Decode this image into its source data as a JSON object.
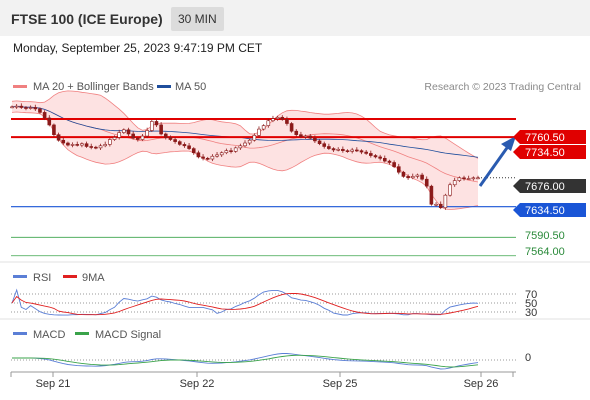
{
  "header": {
    "title": "FTSE 100 (ICE Europe)",
    "interval": "30 MIN"
  },
  "datetime": "Monday, September 25, 2023 9:47:19 PM CET",
  "legend": {
    "item1": "MA 20 + Bollinger Bands",
    "item2": "MA 50",
    "credit": "Research © 2023 Trading Central"
  },
  "colors": {
    "bollinger": "#f08080",
    "bollinger_fill": "#fde2e2",
    "ma50": "#1f4e9c",
    "candle": "#8b1a1a",
    "resistance": "#e00000",
    "support": "#1a55d6",
    "target": "#3aa34a",
    "current": "#333333",
    "rsi": "#5b7fd6",
    "rsi_ma": "#e02020",
    "macd": "#5b7fd6",
    "macd_signal": "#3aa34a"
  },
  "price_levels": {
    "r1": "7760.50",
    "r2": "7734.50",
    "current": "7676.00",
    "s1": "7634.50",
    "t1": "7590.50",
    "t2": "7564.00"
  },
  "rsi_panel": {
    "legend1": "RSI",
    "legend2": "9MA",
    "levels": [
      "70",
      "50",
      "30"
    ]
  },
  "macd_panel": {
    "legend1": "MACD",
    "legend2": "MACD Signal",
    "zero": "0"
  },
  "x_axis": [
    "Sep 21",
    "Sep 22",
    "Sep 25",
    "Sep 26"
  ],
  "chart_data": {
    "type": "candlestick",
    "title": "FTSE 100 (ICE Europe)",
    "interval": "30 MIN",
    "x_labels": [
      "Sep 21",
      "Sep 22",
      "Sep 25",
      "Sep 26"
    ],
    "close": [
      7778,
      7779,
      7777,
      7776,
      7777,
      7775,
      7770,
      7762,
      7752,
      7738,
      7730,
      7726,
      7723,
      7724,
      7723,
      7725,
      7721,
      7720,
      7719,
      7722,
      7724,
      7731,
      7734,
      7741,
      7745,
      7739,
      7733,
      7731,
      7736,
      7744,
      7757,
      7752,
      7739,
      7734,
      7731,
      7728,
      7724,
      7722,
      7718,
      7712,
      7706,
      7704,
      7703,
      7707,
      7709,
      7712,
      7715,
      7714,
      7719,
      7722,
      7726,
      7730,
      7737,
      7746,
      7751,
      7758,
      7761,
      7763,
      7760,
      7754,
      7743,
      7738,
      7735,
      7736,
      7733,
      7729,
      7725,
      7721,
      7718,
      7716,
      7717,
      7715,
      7714,
      7716,
      7715,
      7713,
      7711,
      7708,
      7706,
      7704,
      7700,
      7698,
      7692,
      7684,
      7678,
      7676,
      7678,
      7680,
      7674,
      7664,
      7638,
      7638,
      7633,
      7651,
      7666,
      7672,
      7676,
      7675,
      7675,
      7676,
      7676
    ],
    "horizontal_levels": [
      {
        "label": "7760.50",
        "type": "resistance"
      },
      {
        "label": "7734.50",
        "type": "resistance"
      },
      {
        "label": "7676.00",
        "type": "current"
      },
      {
        "label": "7634.50",
        "type": "support"
      },
      {
        "label": "7590.50",
        "type": "target"
      },
      {
        "label": "7564.00",
        "type": "target"
      }
    ],
    "ylim": [
      7555,
      7795
    ],
    "indicators": [
      "MA 20 + Bollinger Bands",
      "MA 50",
      "RSI",
      "9MA",
      "MACD",
      "MACD Signal"
    ],
    "rsi_levels": [
      70,
      50,
      30
    ],
    "macd_zero": 0
  }
}
